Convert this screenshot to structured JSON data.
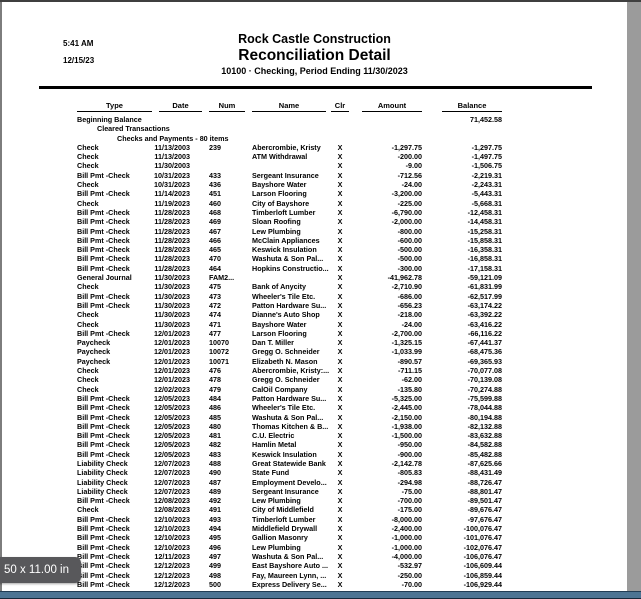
{
  "page_frame": {
    "size_badge_label": "50 x 11.00 in"
  },
  "colors": {
    "canvas_bg": "#9b9b9b",
    "page_bg": "#ffffff",
    "text": "#000000",
    "bottom_bar": "#4d7493",
    "badge_bg": "#58585b"
  },
  "report": {
    "printed_time": "5:41 AM",
    "printed_date": "12/15/23",
    "company": "Rock Castle Construction",
    "title": "Reconciliation Detail",
    "subtitle": "10100 · Checking, Period Ending 11/30/2023",
    "columns": [
      "Type",
      "Date",
      "Num",
      "Name",
      "Clr",
      "Amount",
      "Balance"
    ],
    "beginning_balance_label": "Beginning Balance",
    "beginning_balance_value": "71,452.58",
    "sections": {
      "cleared": "Cleared Transactions",
      "checks_payments": "Checks and Payments - 80 items"
    },
    "rows": [
      {
        "type": "Check",
        "date": "11/13/2003",
        "num": "239",
        "name": "Abercrombie, Kristy",
        "clr": "X",
        "amount": "-1,297.75",
        "balance": "-1,297.75"
      },
      {
        "type": "Check",
        "date": "11/13/2003",
        "num": "",
        "name": "ATM Withdrawal",
        "clr": "X",
        "amount": "-200.00",
        "balance": "-1,497.75"
      },
      {
        "type": "Check",
        "date": "11/30/2003",
        "num": "",
        "name": "",
        "clr": "X",
        "amount": "-9.00",
        "balance": "-1,506.75"
      },
      {
        "type": "Bill Pmt -Check",
        "date": "10/31/2023",
        "num": "433",
        "name": "Sergeant Insurance",
        "clr": "X",
        "amount": "-712.56",
        "balance": "-2,219.31"
      },
      {
        "type": "Check",
        "date": "10/31/2023",
        "num": "436",
        "name": "Bayshore Water",
        "clr": "X",
        "amount": "-24.00",
        "balance": "-2,243.31"
      },
      {
        "type": "Bill Pmt -Check",
        "date": "11/14/2023",
        "num": "451",
        "name": "Larson Flooring",
        "clr": "X",
        "amount": "-3,200.00",
        "balance": "-5,443.31"
      },
      {
        "type": "Check",
        "date": "11/19/2023",
        "num": "460",
        "name": "City of Bayshore",
        "clr": "X",
        "amount": "-225.00",
        "balance": "-5,668.31"
      },
      {
        "type": "Bill Pmt -Check",
        "date": "11/28/2023",
        "num": "468",
        "name": "Timberloft Lumber",
        "clr": "X",
        "amount": "-6,790.00",
        "balance": "-12,458.31"
      },
      {
        "type": "Bill Pmt -Check",
        "date": "11/28/2023",
        "num": "469",
        "name": "Sloan Roofing",
        "clr": "X",
        "amount": "-2,000.00",
        "balance": "-14,458.31"
      },
      {
        "type": "Bill Pmt -Check",
        "date": "11/28/2023",
        "num": "467",
        "name": "Lew Plumbing",
        "clr": "X",
        "amount": "-800.00",
        "balance": "-15,258.31"
      },
      {
        "type": "Bill Pmt -Check",
        "date": "11/28/2023",
        "num": "466",
        "name": "McClain Appliances",
        "clr": "X",
        "amount": "-600.00",
        "balance": "-15,858.31"
      },
      {
        "type": "Bill Pmt -Check",
        "date": "11/28/2023",
        "num": "465",
        "name": "Keswick Insulation",
        "clr": "X",
        "amount": "-500.00",
        "balance": "-16,358.31"
      },
      {
        "type": "Bill Pmt -Check",
        "date": "11/28/2023",
        "num": "470",
        "name": "Washuta & Son Pal...",
        "clr": "X",
        "amount": "-500.00",
        "balance": "-16,858.31"
      },
      {
        "type": "Bill Pmt -Check",
        "date": "11/28/2023",
        "num": "464",
        "name": "Hopkins Constructio...",
        "clr": "X",
        "amount": "-300.00",
        "balance": "-17,158.31"
      },
      {
        "type": "General Journal",
        "date": "11/30/2023",
        "num": "FAM2...",
        "name": "",
        "clr": "X",
        "amount": "-41,962.78",
        "balance": "-59,121.09"
      },
      {
        "type": "Check",
        "date": "11/30/2023",
        "num": "475",
        "name": "Bank of Anycity",
        "clr": "X",
        "amount": "-2,710.90",
        "balance": "-61,831.99"
      },
      {
        "type": "Bill Pmt -Check",
        "date": "11/30/2023",
        "num": "473",
        "name": "Wheeler's Tile Etc.",
        "clr": "X",
        "amount": "-686.00",
        "balance": "-62,517.99"
      },
      {
        "type": "Bill Pmt -Check",
        "date": "11/30/2023",
        "num": "472",
        "name": "Patton Hardware Su...",
        "clr": "X",
        "amount": "-656.23",
        "balance": "-63,174.22"
      },
      {
        "type": "Check",
        "date": "11/30/2023",
        "num": "474",
        "name": "Dianne's Auto Shop",
        "clr": "X",
        "amount": "-218.00",
        "balance": "-63,392.22"
      },
      {
        "type": "Check",
        "date": "11/30/2023",
        "num": "471",
        "name": "Bayshore Water",
        "clr": "X",
        "amount": "-24.00",
        "balance": "-63,416.22"
      },
      {
        "type": "Bill Pmt -Check",
        "date": "12/01/2023",
        "num": "477",
        "name": "Larson Flooring",
        "clr": "X",
        "amount": "-2,700.00",
        "balance": "-66,116.22"
      },
      {
        "type": "Paycheck",
        "date": "12/01/2023",
        "num": "10070",
        "name": "Dan T. Miller",
        "clr": "X",
        "amount": "-1,325.15",
        "balance": "-67,441.37"
      },
      {
        "type": "Paycheck",
        "date": "12/01/2023",
        "num": "10072",
        "name": "Gregg O. Schneider",
        "clr": "X",
        "amount": "-1,033.99",
        "balance": "-68,475.36"
      },
      {
        "type": "Paycheck",
        "date": "12/01/2023",
        "num": "10071",
        "name": "Elizabeth N. Mason",
        "clr": "X",
        "amount": "-890.57",
        "balance": "-69,365.93"
      },
      {
        "type": "Check",
        "date": "12/01/2023",
        "num": "476",
        "name": "Abercrombie, Kristy:...",
        "clr": "X",
        "amount": "-711.15",
        "balance": "-70,077.08"
      },
      {
        "type": "Check",
        "date": "12/01/2023",
        "num": "478",
        "name": "Gregg O. Schneider",
        "clr": "X",
        "amount": "-62.00",
        "balance": "-70,139.08"
      },
      {
        "type": "Check",
        "date": "12/02/2023",
        "num": "479",
        "name": "CalOil Company",
        "clr": "X",
        "amount": "-135.80",
        "balance": "-70,274.88"
      },
      {
        "type": "Bill Pmt -Check",
        "date": "12/05/2023",
        "num": "484",
        "name": "Patton Hardware Su...",
        "clr": "X",
        "amount": "-5,325.00",
        "balance": "-75,599.88"
      },
      {
        "type": "Bill Pmt -Check",
        "date": "12/05/2023",
        "num": "486",
        "name": "Wheeler's Tile Etc.",
        "clr": "X",
        "amount": "-2,445.00",
        "balance": "-78,044.88"
      },
      {
        "type": "Bill Pmt -Check",
        "date": "12/05/2023",
        "num": "485",
        "name": "Washuta & Son Pal...",
        "clr": "X",
        "amount": "-2,150.00",
        "balance": "-80,194.88"
      },
      {
        "type": "Bill Pmt -Check",
        "date": "12/05/2023",
        "num": "480",
        "name": "Thomas Kitchen & B...",
        "clr": "X",
        "amount": "-1,938.00",
        "balance": "-82,132.88"
      },
      {
        "type": "Bill Pmt -Check",
        "date": "12/05/2023",
        "num": "481",
        "name": "C.U. Electric",
        "clr": "X",
        "amount": "-1,500.00",
        "balance": "-83,632.88"
      },
      {
        "type": "Bill Pmt -Check",
        "date": "12/05/2023",
        "num": "482",
        "name": "Hamlin Metal",
        "clr": "X",
        "amount": "-950.00",
        "balance": "-84,582.88"
      },
      {
        "type": "Bill Pmt -Check",
        "date": "12/05/2023",
        "num": "483",
        "name": "Keswick Insulation",
        "clr": "X",
        "amount": "-900.00",
        "balance": "-85,482.88"
      },
      {
        "type": "Liability Check",
        "date": "12/07/2023",
        "num": "488",
        "name": "Great Statewide Bank",
        "clr": "X",
        "amount": "-2,142.78",
        "balance": "-87,625.66"
      },
      {
        "type": "Liability Check",
        "date": "12/07/2023",
        "num": "490",
        "name": "State Fund",
        "clr": "X",
        "amount": "-805.83",
        "balance": "-88,431.49"
      },
      {
        "type": "Liability Check",
        "date": "12/07/2023",
        "num": "487",
        "name": "Employment Develo...",
        "clr": "X",
        "amount": "-294.98",
        "balance": "-88,726.47"
      },
      {
        "type": "Liability Check",
        "date": "12/07/2023",
        "num": "489",
        "name": "Sergeant Insurance",
        "clr": "X",
        "amount": "-75.00",
        "balance": "-88,801.47"
      },
      {
        "type": "Bill Pmt -Check",
        "date": "12/08/2023",
        "num": "492",
        "name": "Lew Plumbing",
        "clr": "X",
        "amount": "-700.00",
        "balance": "-89,501.47"
      },
      {
        "type": "Check",
        "date": "12/08/2023",
        "num": "491",
        "name": "City of Middlefield",
        "clr": "X",
        "amount": "-175.00",
        "balance": "-89,676.47"
      },
      {
        "type": "Bill Pmt -Check",
        "date": "12/10/2023",
        "num": "493",
        "name": "Timberloft Lumber",
        "clr": "X",
        "amount": "-8,000.00",
        "balance": "-97,676.47"
      },
      {
        "type": "Bill Pmt -Check",
        "date": "12/10/2023",
        "num": "494",
        "name": "Middlefield Drywall",
        "clr": "X",
        "amount": "-2,400.00",
        "balance": "-100,076.47"
      },
      {
        "type": "Bill Pmt -Check",
        "date": "12/10/2023",
        "num": "495",
        "name": "Gallion Masonry",
        "clr": "X",
        "amount": "-1,000.00",
        "balance": "-101,076.47"
      },
      {
        "type": "Bill Pmt -Check",
        "date": "12/10/2023",
        "num": "496",
        "name": "Lew Plumbing",
        "clr": "X",
        "amount": "-1,000.00",
        "balance": "-102,076.47"
      },
      {
        "type": "Bill Pmt -Check",
        "date": "12/11/2023",
        "num": "497",
        "name": "Washuta & Son Pal...",
        "clr": "X",
        "amount": "-4,000.00",
        "balance": "-106,076.47"
      },
      {
        "type": "Bill Pmt -Check",
        "date": "12/12/2023",
        "num": "499",
        "name": "East Bayshore Auto ...",
        "clr": "X",
        "amount": "-532.97",
        "balance": "-106,609.44"
      },
      {
        "type": "Bill Pmt -Check",
        "date": "12/12/2023",
        "num": "498",
        "name": "Fay, Maureen Lynn, ...",
        "clr": "X",
        "amount": "-250.00",
        "balance": "-106,859.44"
      },
      {
        "type": "Bill Pmt -Check",
        "date": "12/12/2023",
        "num": "500",
        "name": "Express Delivery Se...",
        "clr": "X",
        "amount": "-70.00",
        "balance": "-106,929.44"
      }
    ]
  }
}
